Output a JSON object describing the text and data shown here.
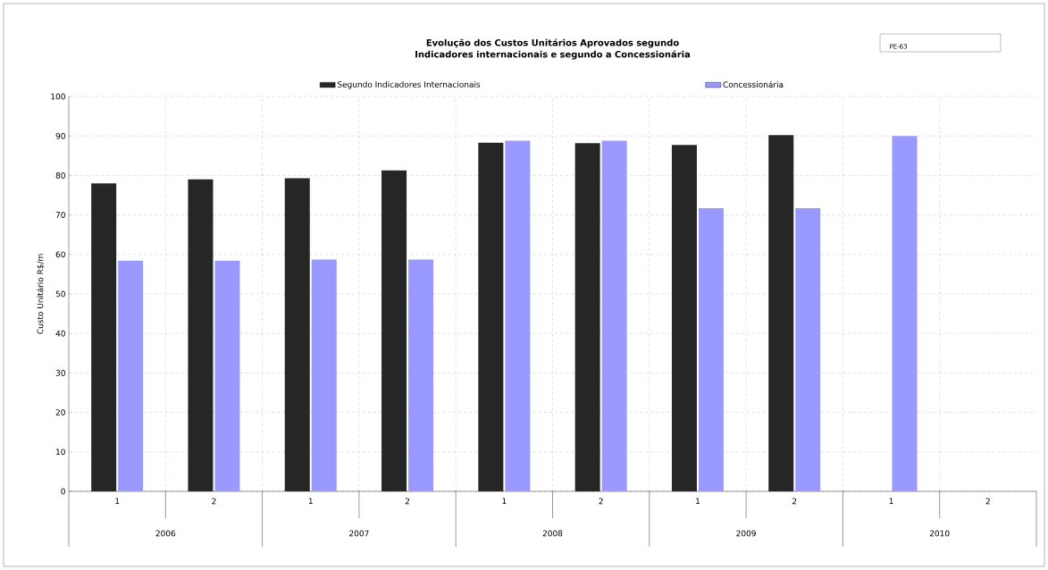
{
  "chart_data": {
    "type": "bar",
    "title": "Evolução dos Custos Unitários Aprovados segundo Indicadores internacionais e segundo a Concessionária",
    "ylabel": "Custo Unitário R$/m",
    "categories": [
      "1",
      "2",
      "1",
      "2",
      "1",
      "2",
      "1",
      "2",
      "1",
      "2"
    ],
    "series": [
      {
        "name": "Segundo Indicadores Internacionais",
        "color": "#262626",
        "values": [
          78,
          79,
          79.3,
          81.3,
          88.3,
          88.2,
          87.7,
          90.2,
          null,
          null
        ]
      },
      {
        "name": "Concessionária",
        "color": "#9999ff",
        "values": [
          58.4,
          58.4,
          58.7,
          58.7,
          88.8,
          88.8,
          71.7,
          71.7,
          90,
          null
        ]
      }
    ],
    "annotations": [
      "2006",
      "2007",
      "2008",
      "2009",
      "2010",
      "PE-63"
    ],
    "ylim": [
      0,
      100
    ],
    "yticks": [
      0,
      10,
      20,
      30,
      40,
      50,
      60,
      70,
      80,
      90,
      100
    ],
    "grid": "y",
    "legend": "top"
  }
}
